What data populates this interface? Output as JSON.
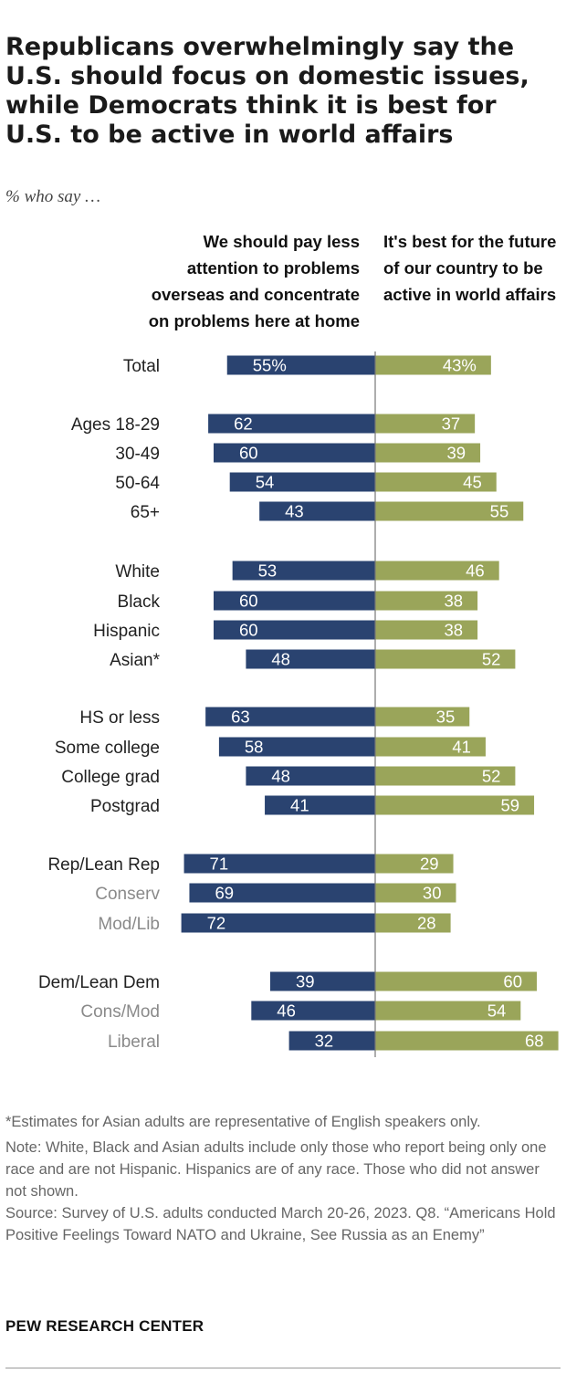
{
  "title": "Republicans overwhelmingly say the U.S. should focus on domestic issues, while Democrats think it is best for U.S. to be active in world affairs",
  "subtitle": "% who say …",
  "chart_data": {
    "type": "bar",
    "orientation": "diverging-horizontal",
    "colors": {
      "left": "#2a4370",
      "right": "#9aa55a",
      "axis": "#777777",
      "label_primary": "#222222",
      "label_secondary": "#8a8a8a"
    },
    "series": [
      {
        "name": "We should pay less attention to problems overseas and concentrate on problems here at home",
        "side": "left"
      },
      {
        "name": "It's best for the future of our country to be active in world affairs",
        "side": "right"
      }
    ],
    "rows": [
      {
        "label": "Total",
        "left": 55,
        "right": 43,
        "left_text": "55%",
        "right_text": "43%",
        "sub": false
      },
      {
        "label": "Ages 18-29",
        "left": 62,
        "right": 37,
        "left_text": "62",
        "right_text": "37",
        "sub": false
      },
      {
        "label": "30-49",
        "left": 60,
        "right": 39,
        "left_text": "60",
        "right_text": "39",
        "sub": false
      },
      {
        "label": "50-64",
        "left": 54,
        "right": 45,
        "left_text": "54",
        "right_text": "45",
        "sub": false
      },
      {
        "label": "65+",
        "left": 43,
        "right": 55,
        "left_text": "43",
        "right_text": "55",
        "sub": false
      },
      {
        "label": "White",
        "left": 53,
        "right": 46,
        "left_text": "53",
        "right_text": "46",
        "sub": false
      },
      {
        "label": "Black",
        "left": 60,
        "right": 38,
        "left_text": "60",
        "right_text": "38",
        "sub": false
      },
      {
        "label": "Hispanic",
        "left": 60,
        "right": 38,
        "left_text": "60",
        "right_text": "38",
        "sub": false
      },
      {
        "label": "Asian*",
        "left": 48,
        "right": 52,
        "left_text": "48",
        "right_text": "52",
        "sub": false
      },
      {
        "label": "HS or less",
        "left": 63,
        "right": 35,
        "left_text": "63",
        "right_text": "35",
        "sub": false
      },
      {
        "label": "Some college",
        "left": 58,
        "right": 41,
        "left_text": "58",
        "right_text": "41",
        "sub": false
      },
      {
        "label": "College grad",
        "left": 48,
        "right": 52,
        "left_text": "48",
        "right_text": "52",
        "sub": false
      },
      {
        "label": "Postgrad",
        "left": 41,
        "right": 59,
        "left_text": "41",
        "right_text": "59",
        "sub": false
      },
      {
        "label": "Rep/Lean Rep",
        "left": 71,
        "right": 29,
        "left_text": "71",
        "right_text": "29",
        "sub": false
      },
      {
        "label": "Conserv",
        "left": 69,
        "right": 30,
        "left_text": "69",
        "right_text": "30",
        "sub": true
      },
      {
        "label": "Mod/Lib",
        "left": 72,
        "right": 28,
        "left_text": "72",
        "right_text": "28",
        "sub": true
      },
      {
        "label": "Dem/Lean Dem",
        "left": 39,
        "right": 60,
        "left_text": "39",
        "right_text": "60",
        "sub": false
      },
      {
        "label": "Cons/Mod",
        "left": 46,
        "right": 54,
        "left_text": "46",
        "right_text": "54",
        "sub": true
      },
      {
        "label": "Liberal",
        "left": 32,
        "right": 68,
        "left_text": "32",
        "right_text": "68",
        "sub": true
      }
    ]
  },
  "notes": {
    "asterisk": "*Estimates for Asian adults are representative of English speakers only.",
    "note": "Note: White, Black and Asian adults include only those who report being only one race and are not Hispanic. Hispanics are of any race. Those who did not answer not shown.",
    "source": "Source: Survey of U.S. adults conducted March 20-26, 2023. Q8. “Americans Hold Positive Feelings Toward NATO and Ukraine, See Russia as an Enemy”"
  },
  "logo": "PEW RESEARCH CENTER"
}
